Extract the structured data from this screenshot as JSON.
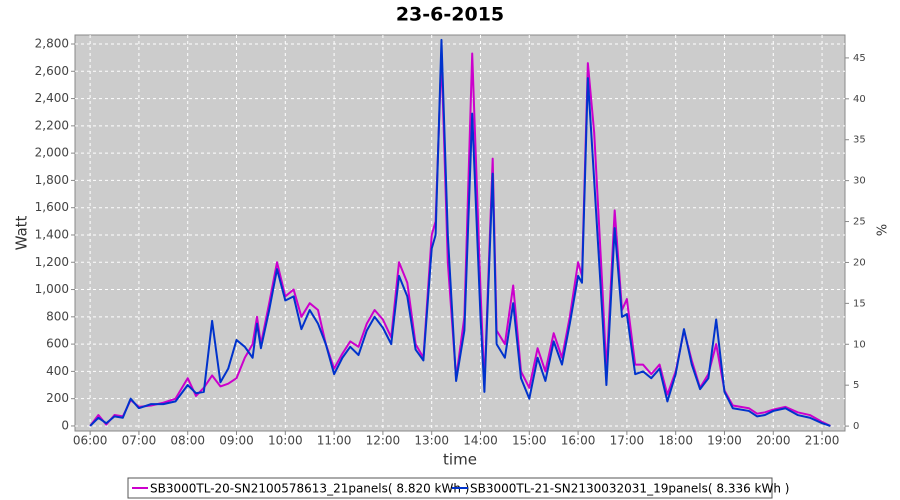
{
  "chart_data": {
    "type": "line",
    "title": "23-6-2015",
    "x_label": "time",
    "y_label": "Watt",
    "y2_label": "%",
    "xlim": [
      5.69,
      21.47
    ],
    "ylim": [
      -37,
      2866
    ],
    "y2lim": [
      -0.6,
      47.8
    ],
    "grid": true,
    "legend": "bottom",
    "xticks": [
      {
        "value": 6,
        "label": "06:00"
      },
      {
        "value": 7,
        "label": "07:00"
      },
      {
        "value": 8,
        "label": "08:00"
      },
      {
        "value": 9,
        "label": "09:00"
      },
      {
        "value": 10,
        "label": "10:00"
      },
      {
        "value": 11,
        "label": "11:00"
      },
      {
        "value": 12,
        "label": "12:00"
      },
      {
        "value": 13,
        "label": "13:00"
      },
      {
        "value": 14,
        "label": "14:00"
      },
      {
        "value": 15,
        "label": "15:00"
      },
      {
        "value": 16,
        "label": "16:00"
      },
      {
        "value": 17,
        "label": "17:00"
      },
      {
        "value": 18,
        "label": "18:00"
      },
      {
        "value": 19,
        "label": "19:00"
      },
      {
        "value": 20,
        "label": "20:00"
      },
      {
        "value": 21,
        "label": "21:00"
      }
    ],
    "yticks": [
      0,
      200,
      400,
      600,
      800,
      {
        "value": 1000,
        "label": "1,000"
      },
      {
        "value": 1200,
        "label": "1,200"
      },
      {
        "value": 1400,
        "label": "1,400"
      },
      {
        "value": 1600,
        "label": "1,600"
      },
      {
        "value": 1800,
        "label": "1,800"
      },
      {
        "value": 2000,
        "label": "2,000"
      },
      {
        "value": 2200,
        "label": "2,200"
      },
      {
        "value": 2400,
        "label": "2,400"
      },
      {
        "value": 2600,
        "label": "2,600"
      },
      {
        "value": 2800,
        "label": "2,800"
      }
    ],
    "y2ticks": [
      0,
      5,
      10,
      15,
      20,
      25,
      30,
      35,
      40,
      45
    ],
    "x": [
      6.0,
      6.17,
      6.33,
      6.5,
      6.67,
      6.83,
      7.0,
      7.25,
      7.5,
      7.75,
      8.0,
      8.17,
      8.33,
      8.5,
      8.67,
      8.83,
      9.0,
      9.17,
      9.33,
      9.42,
      9.5,
      9.67,
      9.83,
      10.0,
      10.17,
      10.33,
      10.5,
      10.67,
      10.83,
      11.0,
      11.17,
      11.33,
      11.5,
      11.67,
      11.83,
      12.0,
      12.17,
      12.33,
      12.5,
      12.67,
      12.83,
      13.0,
      13.08,
      13.2,
      13.33,
      13.5,
      13.67,
      13.83,
      14.0,
      14.08,
      14.25,
      14.33,
      14.5,
      14.67,
      14.83,
      15.0,
      15.17,
      15.33,
      15.5,
      15.67,
      15.83,
      16.0,
      16.08,
      16.2,
      16.33,
      16.5,
      16.58,
      16.75,
      16.9,
      17.0,
      17.17,
      17.33,
      17.5,
      17.67,
      17.83,
      18.0,
      18.17,
      18.33,
      18.5,
      18.67,
      18.83,
      19.0,
      19.17,
      19.5,
      19.67,
      19.83,
      20.0,
      20.25,
      20.5,
      20.75,
      21.0,
      21.17
    ],
    "series": [
      {
        "name": "SB3000TL-20-SN2100578613_21panels( 8.820 kWh )",
        "color": "#cc00cc",
        "values": [
          0,
          80,
          10,
          80,
          70,
          190,
          140,
          150,
          170,
          200,
          350,
          220,
          280,
          370,
          290,
          310,
          350,
          500,
          600,
          800,
          600,
          900,
          1200,
          950,
          1000,
          800,
          900,
          850,
          600,
          420,
          530,
          620,
          580,
          750,
          850,
          780,
          650,
          1200,
          1050,
          600,
          500,
          1400,
          1500,
          2720,
          1200,
          350,
          800,
          2730,
          1000,
          300,
          1960,
          700,
          600,
          1030,
          400,
          280,
          570,
          400,
          680,
          500,
          800,
          1200,
          1100,
          2660,
          2150,
          1000,
          400,
          1580,
          850,
          930,
          450,
          450,
          380,
          450,
          230,
          400,
          700,
          480,
          280,
          380,
          600,
          260,
          150,
          130,
          90,
          100,
          120,
          140,
          100,
          80,
          30,
          0
        ]
      },
      {
        "name": "SB3000TL-21-SN2130032031_19panels( 8.336 kWh )",
        "color": "#0033cc",
        "values": [
          0,
          60,
          20,
          70,
          60,
          200,
          130,
          160,
          160,
          180,
          300,
          240,
          250,
          770,
          320,
          420,
          630,
          580,
          500,
          750,
          570,
          850,
          1150,
          920,
          950,
          710,
          850,
          750,
          600,
          380,
          500,
          580,
          520,
          700,
          800,
          720,
          600,
          1100,
          950,
          560,
          480,
          1300,
          1400,
          2830,
          1400,
          330,
          700,
          2290,
          800,
          250,
          1850,
          600,
          500,
          900,
          350,
          200,
          500,
          330,
          620,
          450,
          750,
          1100,
          1050,
          2550,
          1800,
          800,
          300,
          1450,
          800,
          820,
          380,
          400,
          350,
          420,
          180,
          380,
          710,
          450,
          270,
          350,
          780,
          250,
          130,
          110,
          70,
          80,
          110,
          130,
          80,
          60,
          20,
          0
        ]
      }
    ]
  }
}
